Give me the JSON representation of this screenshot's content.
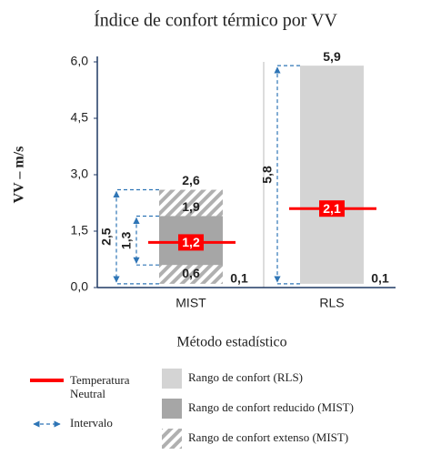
{
  "chart_data": {
    "type": "range",
    "title": "Índice de confort térmico por VV",
    "ylabel": "VV – m/s",
    "xlabel": "Método estadístico",
    "categories": [
      "MIST",
      "RLS"
    ],
    "ylim": [
      0,
      6
    ],
    "yticks": [
      {
        "value": 0,
        "label": "0,0"
      },
      {
        "value": 1.5,
        "label": "1,5"
      },
      {
        "value": 3,
        "label": "3,0"
      },
      {
        "value": 4.5,
        "label": "4,5"
      },
      {
        "value": 6,
        "label": "6,0"
      }
    ],
    "series": [
      {
        "name": "Rango de confort (RLS)",
        "color": "#d4d4d4",
        "category": "RLS",
        "values": [
          0.1,
          5.9
        ],
        "value_labels": [
          "0,1",
          "5,9"
        ],
        "interval": 5.8,
        "interval_label": "5,8"
      },
      {
        "name": "Rango de confort extenso (MIST)",
        "color": "#b0b0b0",
        "pattern": "hatched",
        "category": "MIST",
        "values": [
          0.1,
          2.6
        ],
        "value_labels": [
          "0,1",
          "2,6"
        ],
        "interval": 2.5,
        "interval_label": "2,5"
      },
      {
        "name": "Rango de confort reducido (MIST)",
        "color": "#a6a6a6",
        "category": "MIST",
        "values": [
          0.6,
          1.9
        ],
        "value_labels": [
          "0,6",
          "1,9"
        ],
        "interval": 1.3,
        "interval_label": "1,3"
      }
    ],
    "neutral": {
      "name": "Temperatura Neutral",
      "color": "#ff0000",
      "values": [
        1.2,
        2.1
      ],
      "value_labels": [
        "1,2",
        "2,1"
      ]
    },
    "interval_legend": {
      "name": "Intervalo",
      "color": "#2e75b6"
    },
    "axis_color": "#1f3864"
  }
}
